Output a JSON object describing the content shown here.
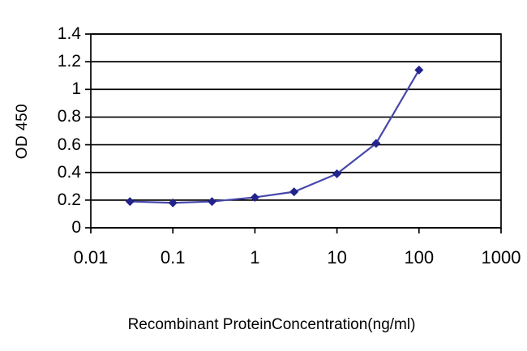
{
  "figure": {
    "background_color": "#ffffff",
    "grid_color": "#000000",
    "axis_color": "#000000"
  },
  "chart_data": {
    "type": "line",
    "title": "",
    "xlabel": "Recombinant ProteinConcentration(ng/ml)",
    "ylabel": "OD 450",
    "x_scale": "log",
    "xlim": [
      0.01,
      1000
    ],
    "ylim": [
      0,
      1.4
    ],
    "grid": "horizontal",
    "legend_position": "none",
    "x_ticks": [
      {
        "value": 0.01,
        "label": "0.01"
      },
      {
        "value": 0.1,
        "label": "0.1"
      },
      {
        "value": 1,
        "label": "1"
      },
      {
        "value": 10,
        "label": "10"
      },
      {
        "value": 100,
        "label": "100"
      },
      {
        "value": 1000,
        "label": "1000"
      }
    ],
    "y_ticks": [
      {
        "value": 0,
        "label": "0"
      },
      {
        "value": 0.2,
        "label": "0.2"
      },
      {
        "value": 0.4,
        "label": "0.4"
      },
      {
        "value": 0.6,
        "label": "0.6"
      },
      {
        "value": 0.8,
        "label": "0.8"
      },
      {
        "value": 1,
        "label": "1"
      },
      {
        "value": 1.2,
        "label": "1.2"
      },
      {
        "value": 1.4,
        "label": "1.4"
      }
    ],
    "series": [
      {
        "name": "OD 450",
        "marker": "diamond",
        "line_color": "#4747AB",
        "marker_color": "#23238C",
        "points": [
          {
            "x": 0.03,
            "y": 0.19
          },
          {
            "x": 0.1,
            "y": 0.18
          },
          {
            "x": 0.3,
            "y": 0.19
          },
          {
            "x": 1,
            "y": 0.22
          },
          {
            "x": 3,
            "y": 0.26
          },
          {
            "x": 10,
            "y": 0.39
          },
          {
            "x": 30,
            "y": 0.61
          },
          {
            "x": 100,
            "y": 1.14
          }
        ]
      }
    ]
  }
}
